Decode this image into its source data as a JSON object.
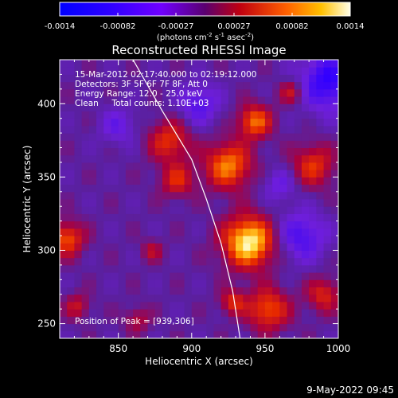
{
  "colorbar": {
    "ticks": [
      "-0.0014",
      "-0.00082",
      "-0.00027",
      "0.00027",
      "0.00082",
      "0.0014"
    ],
    "units_main": "(photons cm",
    "units_exp1": "-2",
    "units_mid": " s",
    "units_exp2": "-1",
    "units_end": " asec",
    "units_exp3": "-2",
    "units_close": ")"
  },
  "chart_data": {
    "type": "heatmap",
    "title": "Reconstructed RHESSI Image",
    "xlabel": "Heliocentric X (arcsec)",
    "ylabel": "Heliocentric Y (arcsec)",
    "xlim": [
      810,
      1000
    ],
    "ylim": [
      240,
      430
    ],
    "x_ticks": [
      850,
      900,
      950,
      1000
    ],
    "y_ticks": [
      250,
      300,
      350,
      400
    ],
    "x_tick_labels": [
      "850",
      "900",
      "950",
      "1000"
    ],
    "y_tick_labels": [
      "250",
      "300",
      "350",
      "400"
    ],
    "color_range": [
      -0.0014,
      0.0014
    ],
    "peak": [
      939,
      306
    ],
    "limb_curve": [
      [
        860,
        430
      ],
      [
        880,
        395
      ],
      [
        900,
        362
      ],
      [
        910,
        335
      ],
      [
        920,
        305
      ],
      [
        928,
        272
      ],
      [
        933,
        240
      ]
    ],
    "sources": [
      {
        "x": 939,
        "y": 306,
        "r": 12,
        "v": 1.0
      },
      {
        "x": 925,
        "y": 358,
        "r": 11,
        "v": 0.7
      },
      {
        "x": 943,
        "y": 388,
        "r": 8,
        "v": 0.65
      },
      {
        "x": 885,
        "y": 375,
        "r": 10,
        "v": 0.5
      },
      {
        "x": 890,
        "y": 348,
        "r": 8,
        "v": 0.45
      },
      {
        "x": 952,
        "y": 260,
        "r": 10,
        "v": 0.6
      },
      {
        "x": 928,
        "y": 265,
        "r": 6,
        "v": 0.45
      },
      {
        "x": 983,
        "y": 358,
        "r": 10,
        "v": 0.5
      },
      {
        "x": 990,
        "y": 270,
        "r": 8,
        "v": 0.45
      },
      {
        "x": 815,
        "y": 308,
        "r": 8,
        "v": 0.6
      },
      {
        "x": 822,
        "y": 262,
        "r": 6,
        "v": 0.35
      },
      {
        "x": 968,
        "y": 408,
        "r": 6,
        "v": 0.4
      },
      {
        "x": 873,
        "y": 300,
        "r": 5,
        "v": 0.3
      },
      {
        "x": 863,
        "y": 253,
        "r": 6,
        "v": 0.3
      }
    ],
    "negatives": [
      {
        "x": 993,
        "y": 415,
        "r": 14,
        "v": -0.6
      },
      {
        "x": 975,
        "y": 310,
        "r": 12,
        "v": -0.45
      },
      {
        "x": 905,
        "y": 400,
        "r": 10,
        "v": -0.4
      },
      {
        "x": 850,
        "y": 385,
        "r": 9,
        "v": -0.3
      },
      {
        "x": 960,
        "y": 345,
        "r": 8,
        "v": -0.3
      }
    ]
  },
  "annotations": {
    "time": "15-Mar-2012 02:17:40.000 to 02:19:12.000",
    "detectors": "Detectors: 3F 5F 6F 7F 8F, Att 0",
    "energy": "Energy Range: 12.0 - 25.0 keV",
    "clean": "Clean     Total counts: 1.10E+03",
    "peak": "Position of Peak = [939,306]"
  },
  "footer": {
    "date": "9-May-2022 09:45"
  }
}
